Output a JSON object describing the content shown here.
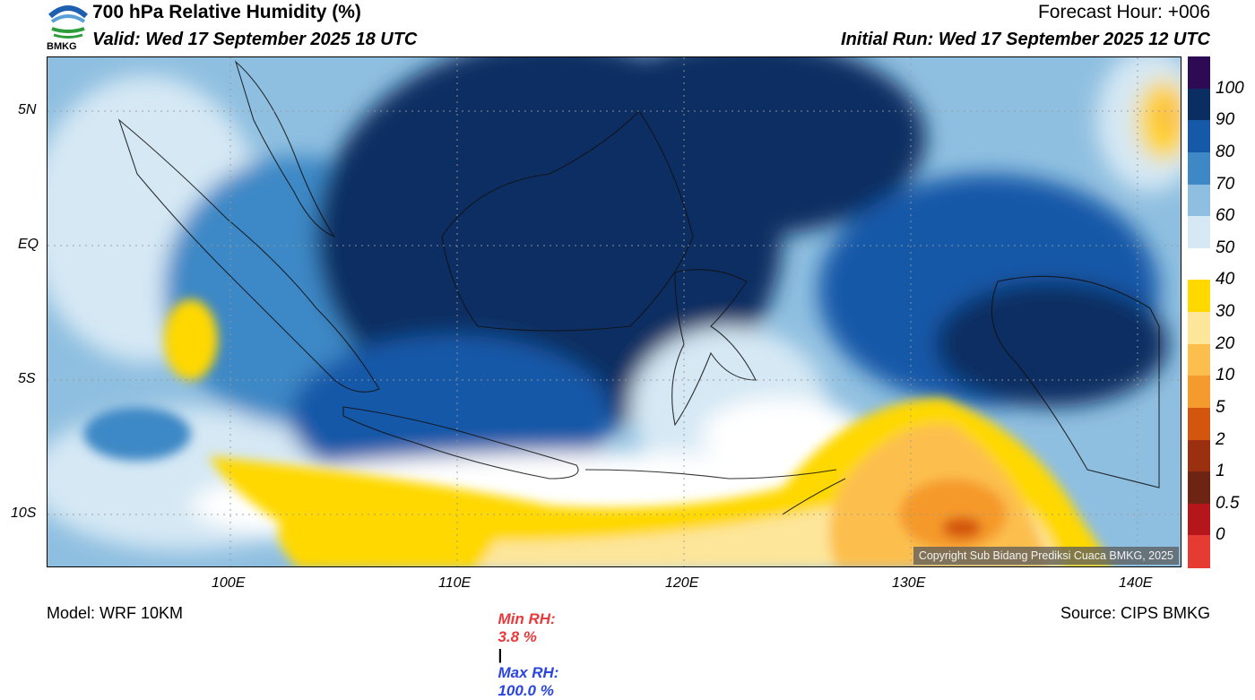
{
  "header": {
    "title": "700 hPa Relative Humidity (%)",
    "valid": "Valid: Wed 17 September 2025 18 UTC",
    "forecast_hour": "Forecast Hour: +006",
    "initial_run": "Initial Run: Wed 17 September 2025 12 UTC",
    "logo_text": "BMKG"
  },
  "map": {
    "lat_labels": [
      "5N",
      "EQ",
      "5S",
      "10S"
    ],
    "lon_labels": [
      "100E",
      "110E",
      "120E",
      "130E",
      "140E"
    ],
    "copyright": "Copyright Sub Bidang Prediksi Cuaca BMKG, 2025"
  },
  "colorbar": {
    "labels": [
      "100",
      "90",
      "80",
      "70",
      "60",
      "50",
      "40",
      "30",
      "20",
      "10",
      "5",
      "2",
      "1",
      "0.5",
      "0"
    ],
    "colors": [
      "#2e0a55",
      "#0a2d62",
      "#1659a8",
      "#3e88c6",
      "#8fbfe0",
      "#d5e8f4",
      "#ffffff",
      "#ffd800",
      "#fde59a",
      "#fcbf4e",
      "#f59a2c",
      "#d4560e",
      "#9b3011",
      "#6e2412",
      "#b5161b",
      "#e53b33"
    ]
  },
  "stats": {
    "min_label": "Min RH:",
    "min_value": "3.8 %",
    "separator": "|",
    "max_label": "Max RH:",
    "max_value": "100.0 %"
  },
  "footer": {
    "model": "Model: WRF 10KM",
    "source": "Source: CIPS BMKG"
  },
  "colors": {
    "min_red": "#e8393b",
    "max_blue": "#2a45e0"
  }
}
